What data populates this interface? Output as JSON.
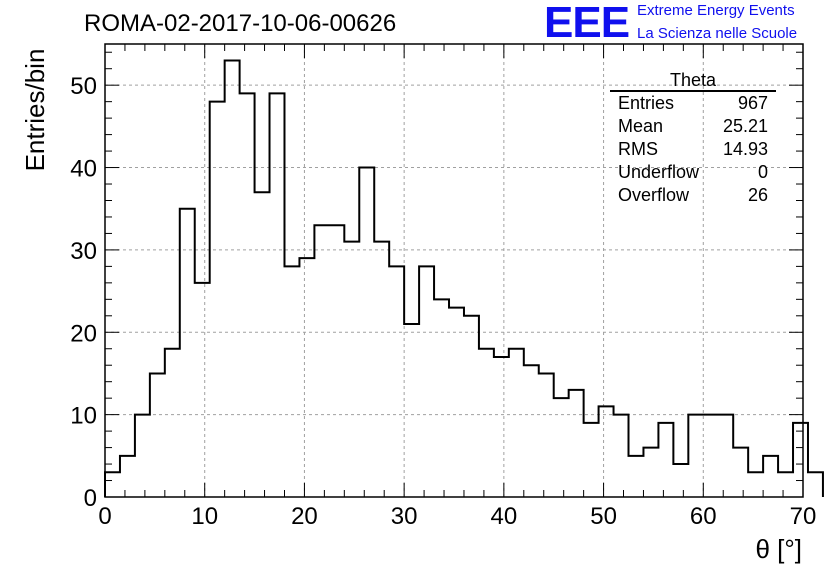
{
  "header": {
    "run_id": "ROMA-02-2017-10-06-00626",
    "logo_text": "EEE",
    "tagline_1": "Extreme Energy Events",
    "tagline_2": "La Scienza nelle Scuole"
  },
  "stats_box": {
    "title": "Theta",
    "rows": [
      {
        "label": "Entries",
        "value": "967"
      },
      {
        "label": "Mean",
        "value": "25.21"
      },
      {
        "label": "RMS",
        "value": "14.93"
      },
      {
        "label": "Underflow",
        "value": "0"
      },
      {
        "label": "Overflow",
        "value": "26"
      }
    ]
  },
  "chart_data": {
    "type": "bar",
    "style": "step-histogram",
    "xlabel": "θ [°]",
    "ylabel": "Entries/bin",
    "xlim": [
      0,
      70
    ],
    "ylim": [
      0,
      55
    ],
    "x_ticks": [
      0,
      10,
      20,
      30,
      40,
      50,
      60,
      70
    ],
    "y_ticks": [
      0,
      10,
      20,
      30,
      40,
      50
    ],
    "bin_width": 1.5,
    "bin_edges_start": 0,
    "values": [
      3,
      5,
      10,
      15,
      18,
      35,
      26,
      48,
      53,
      49,
      37,
      49,
      28,
      29,
      33,
      33,
      31,
      40,
      31,
      28,
      21,
      28,
      24,
      23,
      22,
      18,
      17,
      18,
      16,
      15,
      12,
      13,
      9,
      11,
      10,
      5,
      6,
      9,
      4,
      10,
      10,
      10,
      6,
      3,
      5,
      3,
      9,
      3
    ],
    "grid": true,
    "line_color": "#000000",
    "grid_color": "#a0a0a0",
    "title_color_logo": "#1010ee"
  }
}
